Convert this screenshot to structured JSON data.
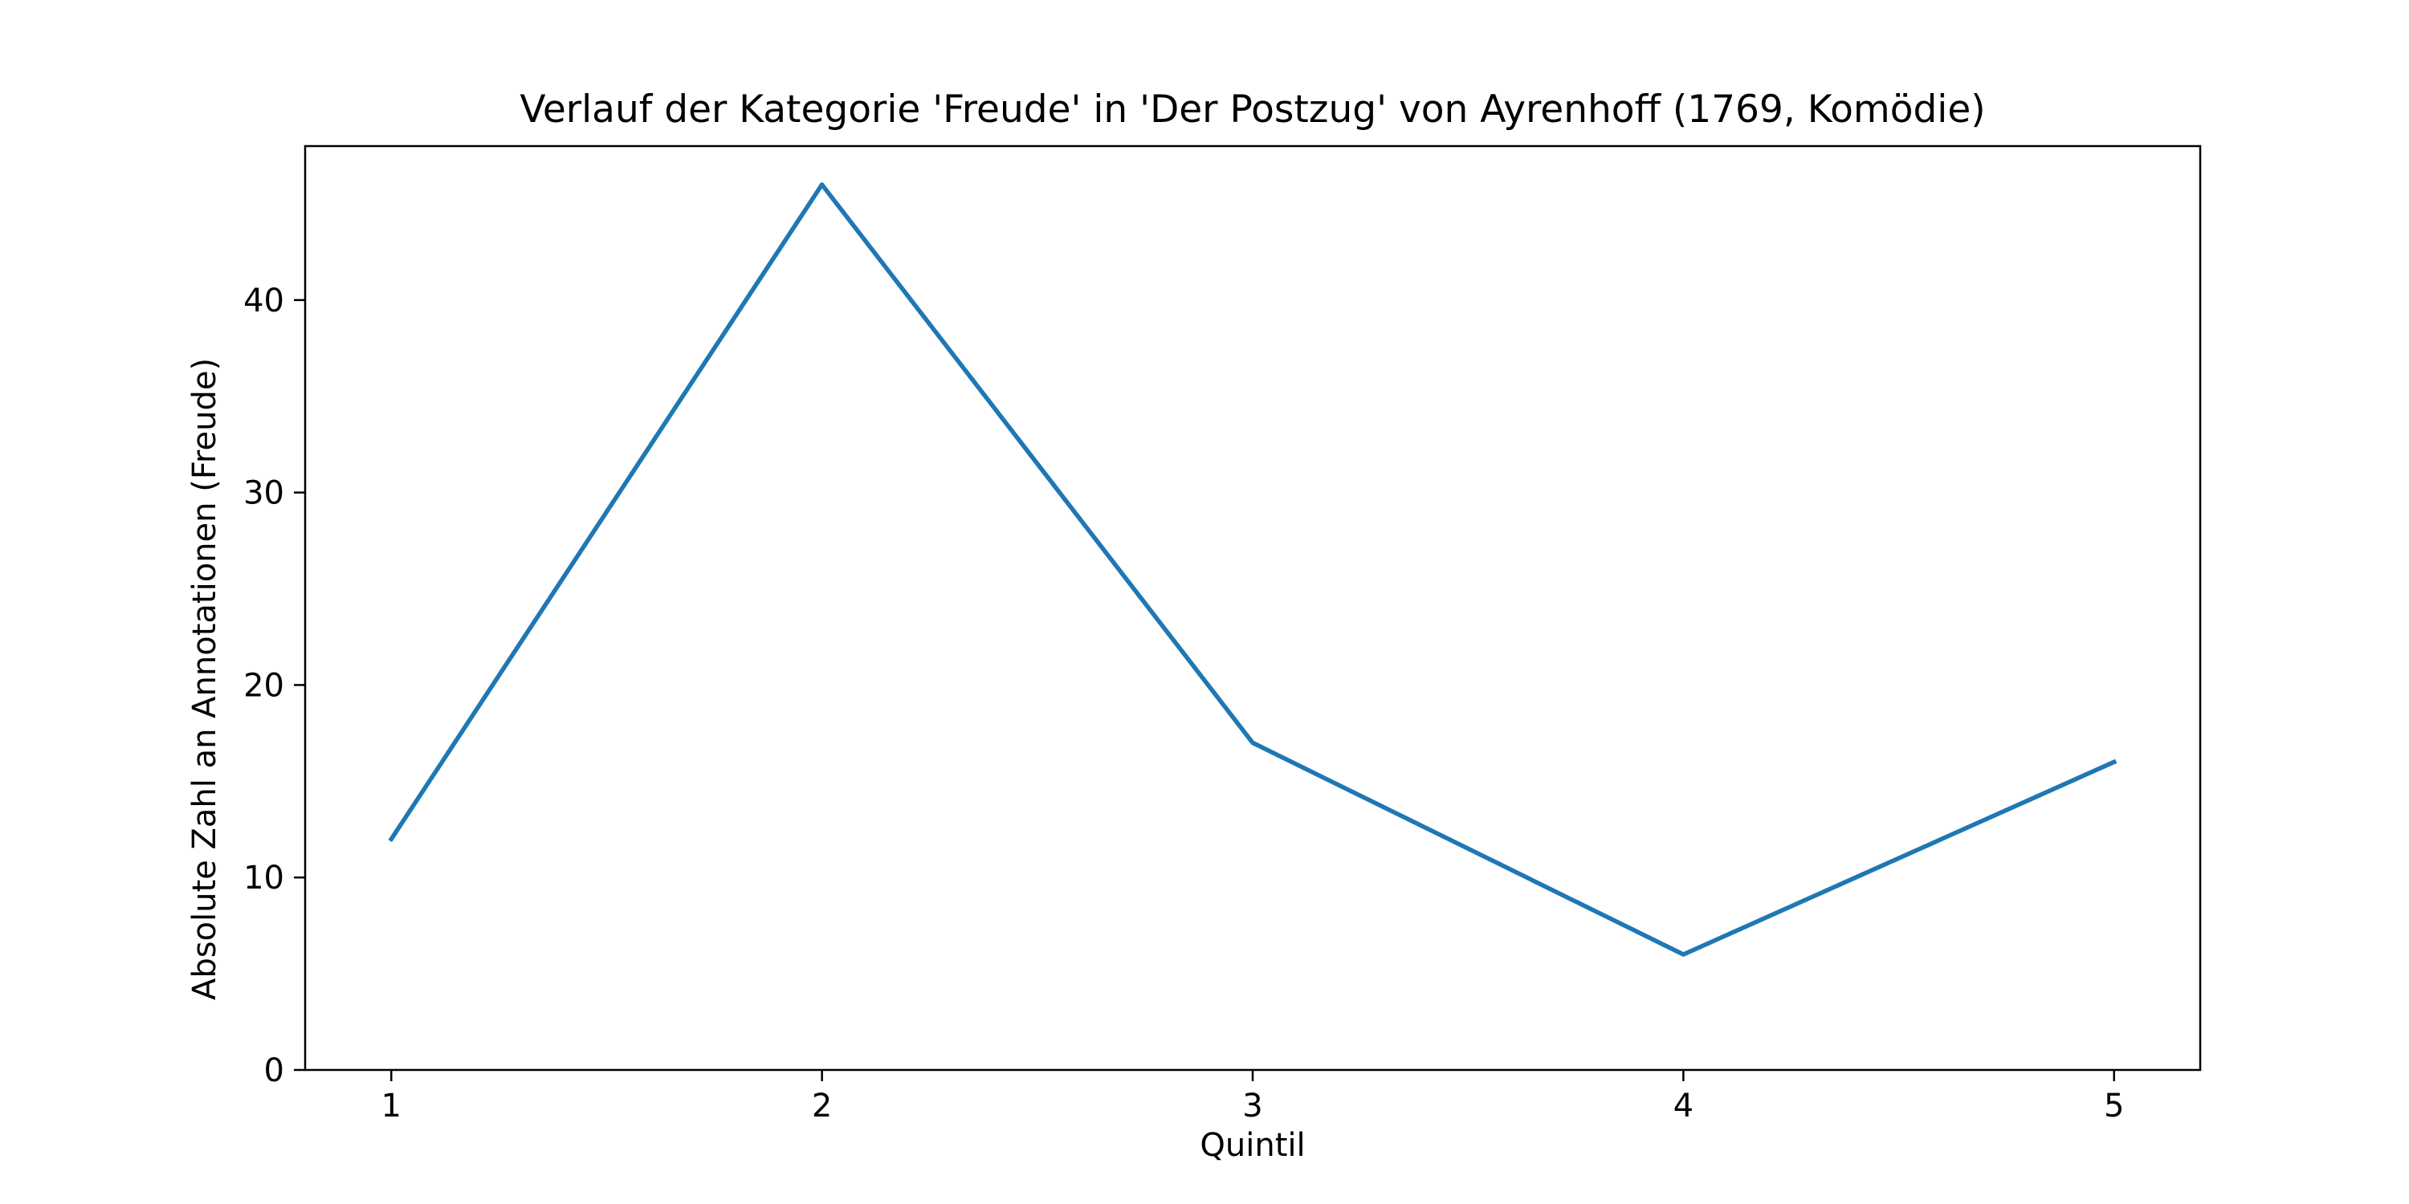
{
  "chart_data": {
    "type": "line",
    "title": "Verlauf der Kategorie 'Freude' in 'Der Postzug' von Ayrenhoff (1769, Komödie)",
    "xlabel": "Quintil",
    "ylabel": "Absolute Zahl an Annotationen (Freude)",
    "x": [
      1,
      2,
      3,
      4,
      5
    ],
    "series": [
      {
        "values": [
          12,
          46,
          17,
          6,
          16
        ],
        "color": "#1f77b4"
      }
    ],
    "xlim": [
      0.8,
      5.2
    ],
    "ylim": [
      0,
      48
    ],
    "xticks": [
      "1",
      "2",
      "3",
      "4",
      "5"
    ],
    "yticks": [
      "0",
      "10",
      "20",
      "30",
      "40"
    ],
    "grid": false,
    "legend": "none"
  }
}
